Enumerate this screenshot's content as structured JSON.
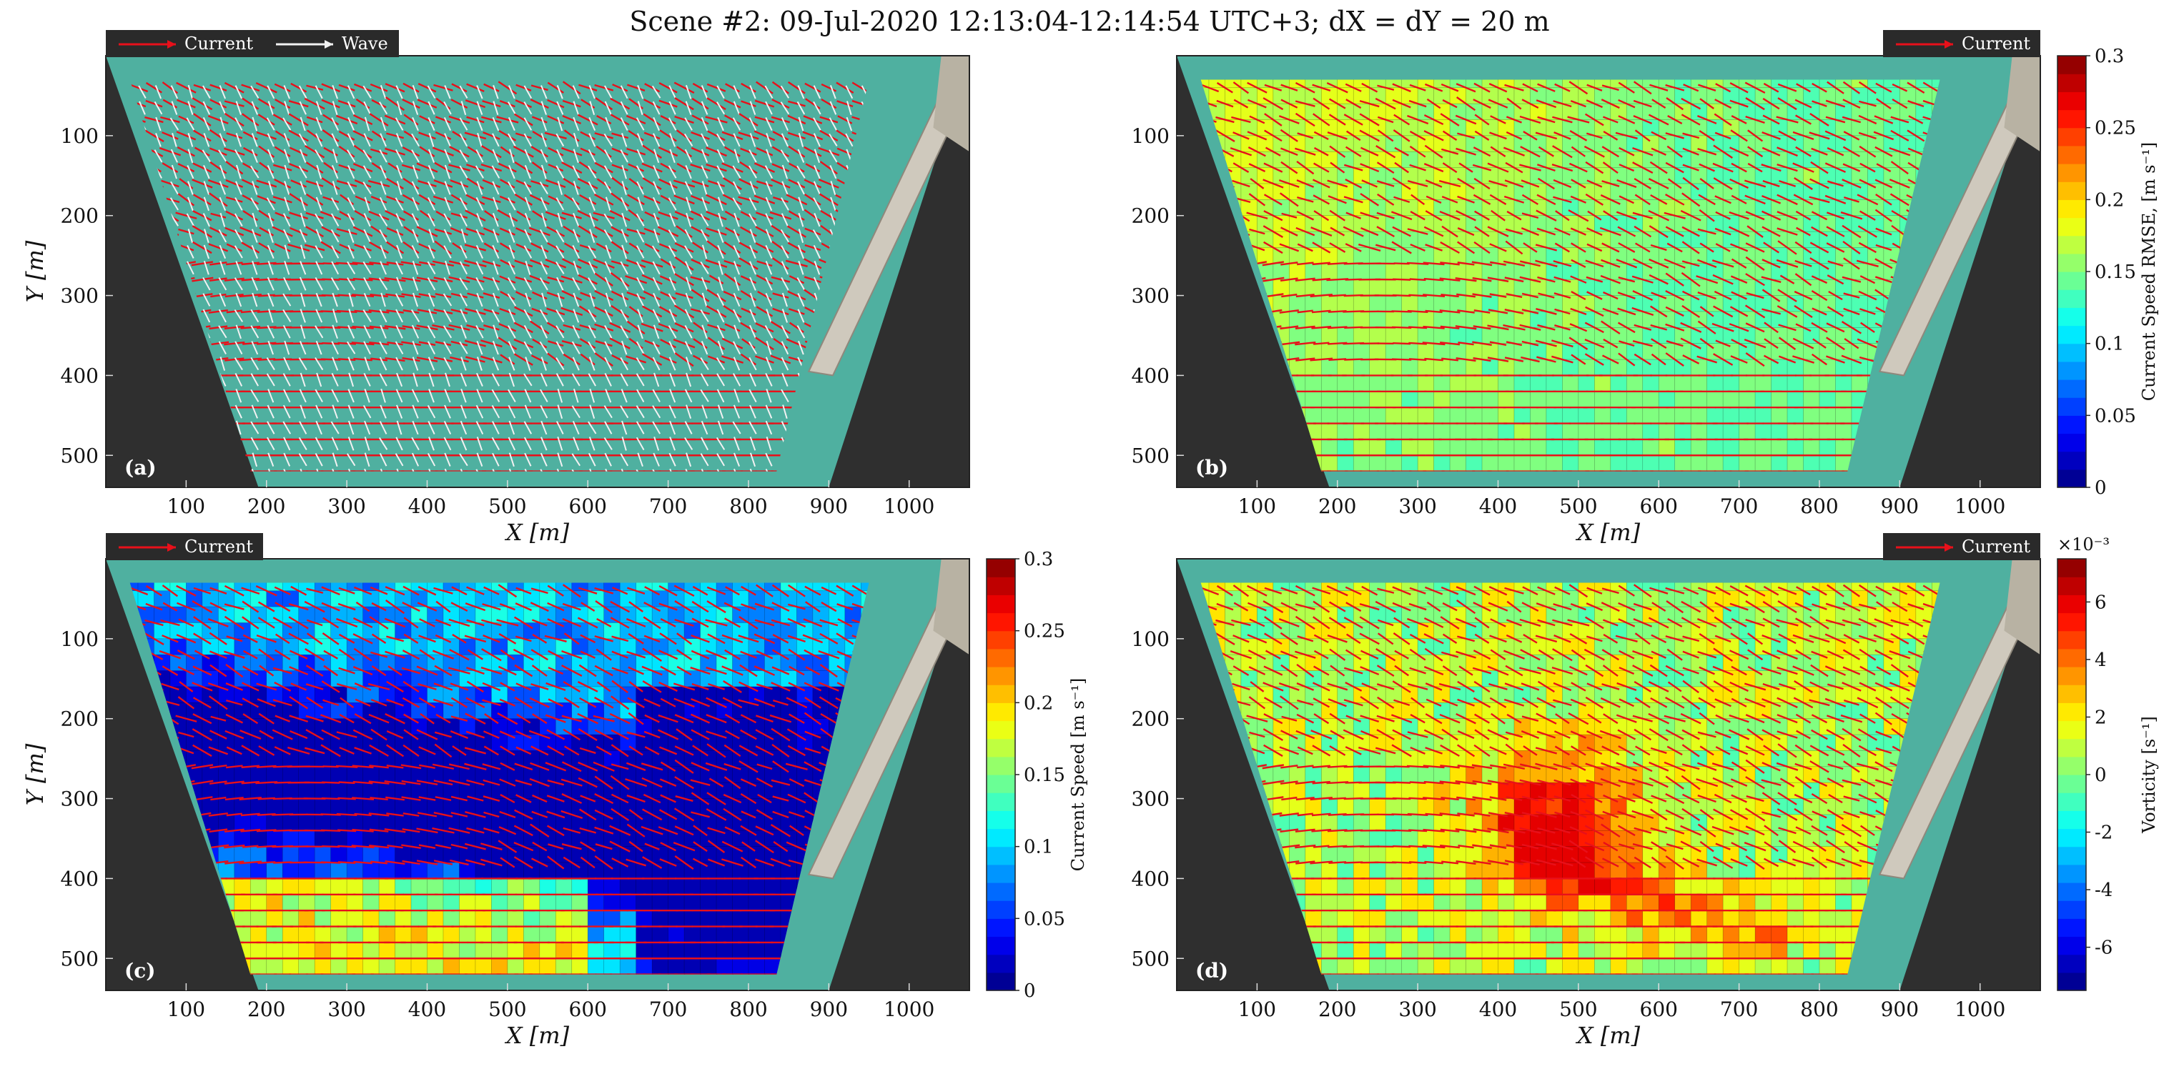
{
  "figure_title": "Scene #2: 09-Jul-2020 12:13:04-12:14:54 UTC+3; dX = dY = 20 m",
  "colors": {
    "frame_dark": "#2f2f2f",
    "water": "#4fb0a0",
    "current_arrow": "#e8101a",
    "wave_arrow": "#f2f2f2",
    "pier": "#cfc9bd",
    "grid": "#9aa7a6"
  },
  "chart_data": [
    {
      "id": "a",
      "type": "quiver",
      "panel_label": "(a)",
      "legend": [
        "Current",
        "Wave"
      ],
      "xlabel": "X [m]",
      "ylabel": "Y [m]",
      "xlim": [
        0,
        1075
      ],
      "ylim": [
        540,
        0
      ],
      "xticks": [
        100,
        200,
        300,
        400,
        500,
        600,
        700,
        800,
        900,
        1000
      ],
      "yticks": [
        100,
        200,
        300,
        400,
        500
      ],
      "grid_step_m": 20,
      "series": [
        {
          "name": "Current",
          "color": "#e8101a"
        },
        {
          "name": "Wave",
          "color": "#f2f2f2"
        }
      ]
    },
    {
      "id": "b",
      "type": "heatmap",
      "panel_label": "(b)",
      "legend": [
        "Current"
      ],
      "xlabel": "X [m]",
      "ylabel": "",
      "xlim": [
        0,
        1075
      ],
      "ylim": [
        540,
        0
      ],
      "xticks": [
        100,
        200,
        300,
        400,
        500,
        600,
        700,
        800,
        900,
        1000
      ],
      "yticks": [
        100,
        200,
        300,
        400,
        500
      ],
      "colorbar": {
        "label": "Current Speed RMSE, [m s⁻¹]",
        "min": 0,
        "max": 0.3,
        "ticks": [
          "0",
          "0.05",
          "0.1",
          "0.15",
          "0.2",
          "0.25",
          "0.3"
        ],
        "exponent": ""
      },
      "field_range": [
        0.1,
        0.18
      ]
    },
    {
      "id": "c",
      "type": "heatmap",
      "panel_label": "(c)",
      "legend": [
        "Current"
      ],
      "xlabel": "X [m]",
      "ylabel": "Y [m]",
      "xlim": [
        0,
        1075
      ],
      "ylim": [
        540,
        0
      ],
      "xticks": [
        100,
        200,
        300,
        400,
        500,
        600,
        700,
        800,
        900,
        1000
      ],
      "yticks": [
        100,
        200,
        300,
        400,
        500
      ],
      "colorbar": {
        "label": "Current Speed [m s⁻¹]",
        "min": 0,
        "max": 0.3,
        "ticks": [
          "0",
          "0.05",
          "0.1",
          "0.15",
          "0.2",
          "0.25",
          "0.3"
        ],
        "exponent": ""
      },
      "field_range": [
        0.02,
        0.22
      ]
    },
    {
      "id": "d",
      "type": "heatmap",
      "panel_label": "(d)",
      "legend": [
        "Current"
      ],
      "xlabel": "X [m]",
      "ylabel": "",
      "xlim": [
        0,
        1075
      ],
      "ylim": [
        540,
        0
      ],
      "xticks": [
        100,
        200,
        300,
        400,
        500,
        600,
        700,
        800,
        900,
        1000
      ],
      "yticks": [
        100,
        200,
        300,
        400,
        500
      ],
      "colorbar": {
        "label": "Vorticity [s⁻¹]",
        "min": -0.0075,
        "max": 0.0075,
        "ticks": [
          "-6",
          "-4",
          "-2",
          "0",
          "2",
          "4",
          "6"
        ],
        "exponent": "×10⁻³"
      },
      "field_range": [
        -0.002,
        0.006
      ]
    }
  ]
}
